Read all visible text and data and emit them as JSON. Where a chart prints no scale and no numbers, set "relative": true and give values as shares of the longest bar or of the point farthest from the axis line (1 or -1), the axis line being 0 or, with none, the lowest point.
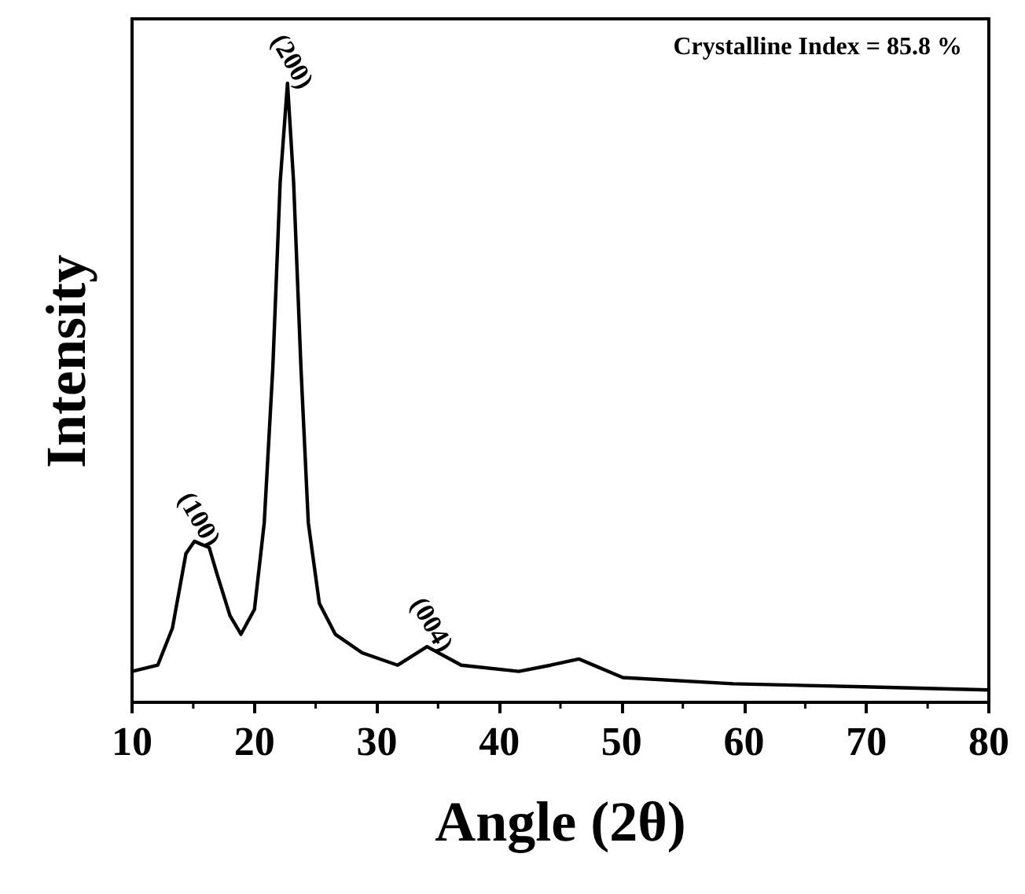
{
  "chart_data": {
    "type": "line",
    "relative": true,
    "xlabel": "Angle (2θ)",
    "ylabel": "Intensity",
    "x": [
      10,
      12.1,
      13.3,
      14.4,
      15.1,
      16.3,
      16.9,
      18.0,
      18.9,
      20.0,
      20.8,
      21.5,
      22.1,
      22.7,
      23.2,
      23.8,
      24.4,
      25.3,
      26.6,
      28.8,
      31.7,
      34.1,
      36.9,
      41.6,
      44.2,
      46.5,
      50.1,
      59.1,
      69.8,
      80
    ],
    "series": [
      {
        "color": "#000000",
        "values": [
          0.05,
          0.06,
          0.12,
          0.24,
          0.26,
          0.25,
          0.21,
          0.14,
          0.11,
          0.15,
          0.29,
          0.54,
          0.84,
          1.0,
          0.84,
          0.54,
          0.29,
          0.16,
          0.11,
          0.08,
          0.06,
          0.09,
          0.06,
          0.05,
          0.06,
          0.07,
          0.04,
          0.03,
          0.025,
          0.02
        ]
      }
    ],
    "xlim": [
      10,
      80
    ],
    "xticks": [
      10,
      20,
      30,
      40,
      50,
      60,
      70,
      80
    ],
    "annotations": [
      {
        "text": "(100)",
        "x": 15.1,
        "y": 0.26
      },
      {
        "text": "(200)",
        "x": 22.7,
        "y": 1.0
      },
      {
        "text": "(004)",
        "x": 34.1,
        "y": 0.09
      },
      "Crystalline Index = 85.8 %"
    ],
    "tick_labels": "x",
    "grid": false,
    "marker": "none",
    "line_style": "solid"
  }
}
